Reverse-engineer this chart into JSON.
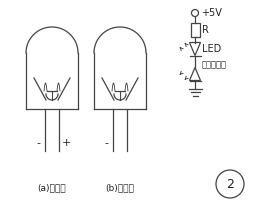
{
  "bg_color": "#ffffff",
  "label_a": "(a)发射管",
  "label_b": "(b)接收管",
  "label_minus1": "-",
  "label_plus1": "+",
  "label_minus2": "-",
  "v5v": "+5V",
  "r_label": "R",
  "led_label": "LED",
  "ir_label": "被测红外管",
  "circle2_label": "2",
  "fig_width": 2.65,
  "fig_height": 2.06,
  "line_color": "#444444",
  "text_color": "#222222",
  "font_size_small": 6.0,
  "font_size_label": 6.5,
  "font_size_circuit": 7.0
}
